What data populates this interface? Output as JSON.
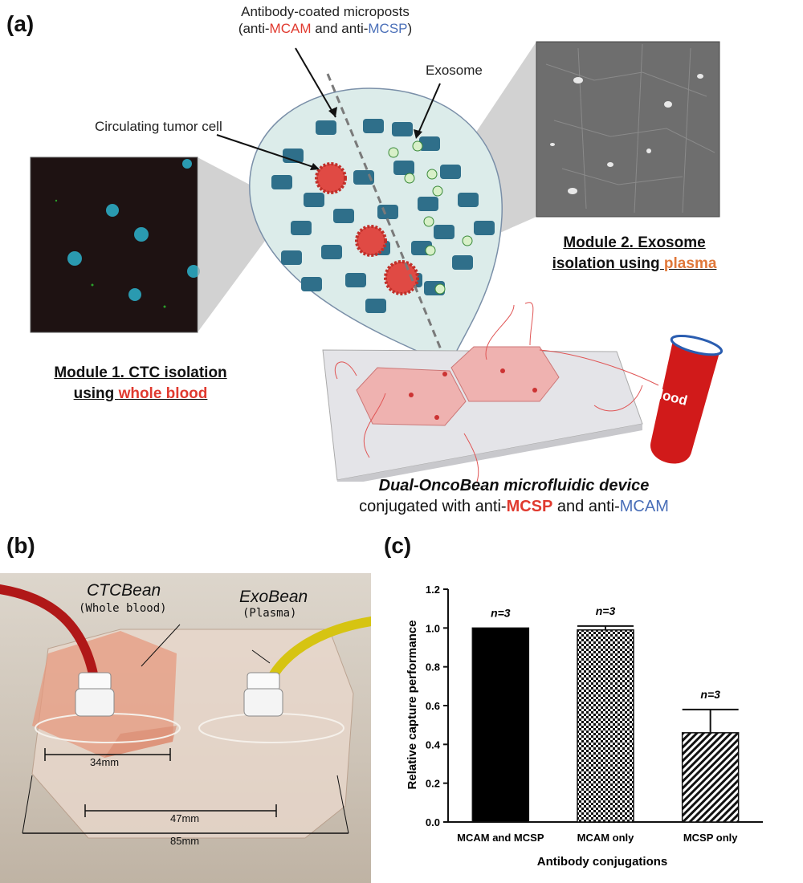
{
  "panel_a": {
    "letter": "(a)",
    "antibody_label_line1": "Antibody-coated microposts",
    "antibody_label_line2_pre": "(anti-",
    "antibody_label_mcam": "MCAM",
    "antibody_label_mid": " and anti-",
    "antibody_label_mcsp": "MCSP",
    "antibody_label_post": ")",
    "ctc_label": "Circulating tumor cell",
    "exosome_label": "Exosome",
    "module1_line1": "Module 1. CTC isolation",
    "module1_line2_pre": "using ",
    "module1_line2_hl": "whole blood",
    "module2_line1": "Module 2. Exosome",
    "module2_line2_pre": "isolation using ",
    "module2_line2_hl": "plasma",
    "tube_label": "Blood",
    "device_line1": "Dual-OncoBean microfluidic device",
    "device_line2_pre": "conjugated with anti-",
    "device_line2_mcsp": "MCSP",
    "device_line2_mid": " and anti-",
    "device_line2_mcam": "MCAM"
  },
  "panel_b": {
    "letter": "(b)",
    "ctcbean_title": "CTCBean",
    "ctcbean_sub": "(Whole blood)",
    "exobean_title": "ExoBean",
    "exobean_sub": "(Plasma)",
    "dim_34": "34mm",
    "dim_47": "47mm",
    "dim_85": "85mm"
  },
  "panel_c": {
    "letter": "(c)"
  },
  "chart_data": {
    "type": "bar",
    "categories": [
      "MCAM and MCSP",
      "MCAM only",
      "MCSP only"
    ],
    "values": [
      1.0,
      0.99,
      0.46
    ],
    "errors": [
      0.0,
      0.02,
      0.12
    ],
    "annotations": [
      "n=3",
      "n=3",
      "n=3"
    ],
    "xlabel": "Antibody conjugations",
    "ylabel": "Relative capture performance",
    "ylim": [
      0.0,
      1.2
    ],
    "yticks": [
      "0.0",
      "0.2",
      "0.4",
      "0.6",
      "0.8",
      "1.0",
      "1.2"
    ],
    "fills": [
      "solid-black",
      "checkered",
      "diagonal-hatch"
    ],
    "colors": {
      "bar": "#000000"
    }
  },
  "colors": {
    "red_accent": "#e03a2f",
    "blue_accent": "#4a6fb8",
    "orange_accent": "#e0783a",
    "post_color": "#2f6f8a"
  }
}
